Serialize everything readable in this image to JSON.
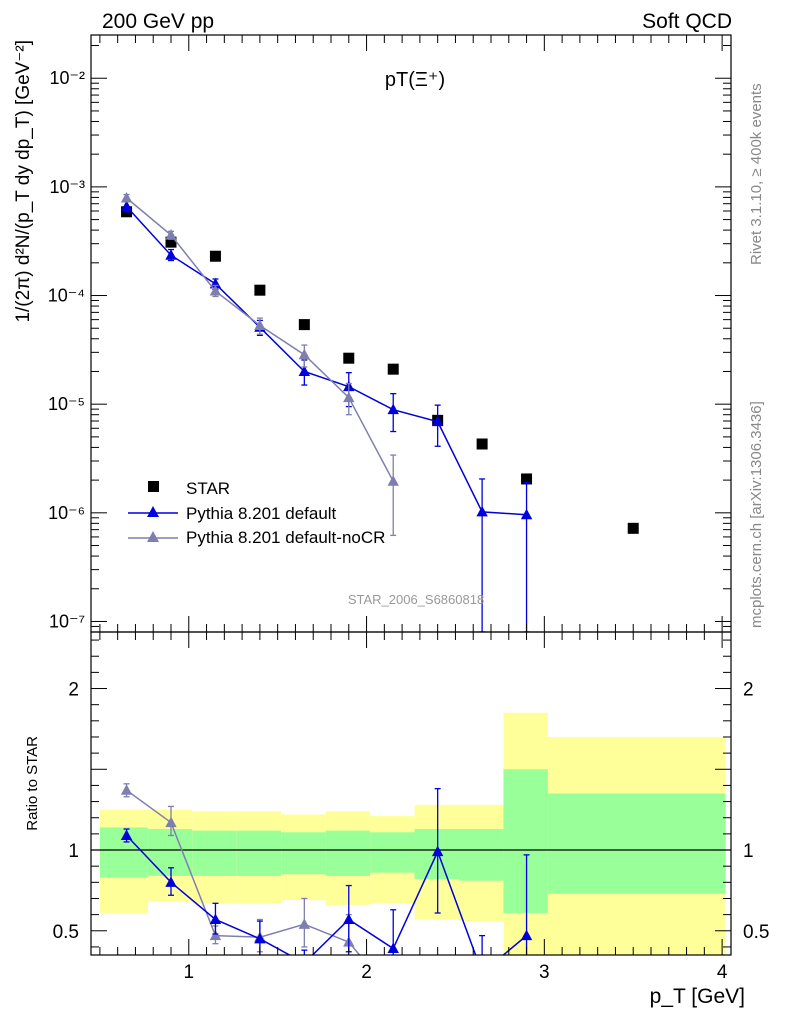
{
  "header": {
    "left": "200 GeV pp",
    "right": "Soft QCD"
  },
  "side_text": {
    "top": "Rivet 3.1.10, ≥ 400k events",
    "bottom": "mcplots.cern.ch [arXiv:1306.3436]"
  },
  "watermark": "STAR_2006_S6860818",
  "colors": {
    "star": "#000000",
    "pythia_default": "#0000dd",
    "pythia_nocr": "#7f7faf",
    "band_inner": "#99ff99",
    "band_outer": "#ffff99"
  },
  "chart_data": [
    {
      "type": "scatter",
      "title": "pT(Ξ⁺)",
      "ylabel": "1/(2π) d²N/(p_T dy dp_T) [GeV⁻²]",
      "yscale": "log",
      "ylim": [
        8e-08,
        0.025
      ],
      "xlim": [
        0.45,
        4.05
      ],
      "yticks": [
        {
          "v": 1e-07,
          "label": "10⁻⁷"
        },
        {
          "v": 1e-06,
          "label": "10⁻⁶"
        },
        {
          "v": 1e-05,
          "label": "10⁻⁵"
        },
        {
          "v": 0.0001,
          "label": "10⁻⁴"
        },
        {
          "v": 0.001,
          "label": "10⁻³"
        },
        {
          "v": 0.01,
          "label": "10⁻²"
        }
      ],
      "legend": [
        "STAR",
        "Pythia 8.201 default",
        "Pythia 8.201 default-noCR"
      ],
      "series": [
        {
          "name": "STAR",
          "marker": "square",
          "points": [
            [
              0.65,
              0.00059
            ],
            [
              0.9,
              0.00031
            ],
            [
              1.15,
              0.00023
            ],
            [
              1.4,
              0.000112
            ],
            [
              1.65,
              5.4e-05
            ],
            [
              1.9,
              2.65e-05
            ],
            [
              2.15,
              2.1e-05
            ],
            [
              2.4,
              7.1e-06
            ],
            [
              2.65,
              4.3e-06
            ],
            [
              2.9,
              2.05e-06
            ],
            [
              3.5,
              7.2e-07
            ]
          ]
        },
        {
          "name": "Pythia 8.201 default",
          "marker": "triangle",
          "points": [
            [
              0.65,
              0.00066,
              0.00073,
              0.00059
            ],
            [
              0.9,
              0.000235,
              0.000265,
              0.00021
            ],
            [
              1.15,
              0.000128,
              0.000142,
              0.000114
            ],
            [
              1.4,
              5.1e-05,
              5.9e-05,
              4.3e-05
            ],
            [
              1.65,
              2e-05,
              2.55e-05,
              1.5e-05
            ],
            [
              1.9,
              1.45e-05,
              1.95e-05,
              9.5e-06
            ],
            [
              2.15,
              8.9e-06,
              1.25e-05,
              5.6e-06
            ],
            [
              2.4,
              6.9e-06,
              9.8e-06,
              4.1e-06
            ],
            [
              2.65,
              1.02e-06,
              2.05e-06,
              8e-08
            ],
            [
              2.9,
              9.6e-07,
              1.9e-06,
              8e-08
            ]
          ]
        },
        {
          "name": "Pythia 8.201 default-noCR",
          "marker": "triangle",
          "points": [
            [
              0.65,
              0.00079,
              0.00085,
              0.00073
            ],
            [
              0.9,
              0.00036,
              0.00039,
              0.00033
            ],
            [
              1.15,
              0.00011,
              0.000124,
              9.8e-05
            ],
            [
              1.4,
              5.3e-05,
              6.2e-05,
              4.4e-05
            ],
            [
              1.65,
              2.85e-05,
              3.5e-05,
              2.2e-05
            ],
            [
              1.9,
              1.15e-05,
              1.55e-05,
              8e-06
            ],
            [
              2.15,
              1.95e-06,
              3.4e-06,
              6.2e-07
            ]
          ]
        }
      ]
    },
    {
      "type": "line",
      "ylabel": "Ratio to STAR",
      "xlabel": "p_T [GeV]",
      "ylim": [
        0.35,
        2.35
      ],
      "xlim": [
        0.45,
        4.05
      ],
      "xticks": [
        1,
        2,
        3,
        4
      ],
      "yticks": [
        0.5,
        1,
        2
      ],
      "bands": [
        {
          "x0": 0.5,
          "x1": 0.77,
          "in_lo": 0.83,
          "in_hi": 1.14,
          "out_lo": 0.61,
          "out_hi": 1.25
        },
        {
          "x0": 0.77,
          "x1": 1.02,
          "in_lo": 0.84,
          "in_hi": 1.13,
          "out_lo": 0.68,
          "out_hi": 1.25
        },
        {
          "x0": 1.02,
          "x1": 1.27,
          "in_lo": 0.84,
          "in_hi": 1.12,
          "out_lo": 0.67,
          "out_hi": 1.24
        },
        {
          "x0": 1.27,
          "x1": 1.52,
          "in_lo": 0.84,
          "in_hi": 1.12,
          "out_lo": 0.67,
          "out_hi": 1.24
        },
        {
          "x0": 1.52,
          "x1": 1.77,
          "in_lo": 0.85,
          "in_hi": 1.11,
          "out_lo": 0.69,
          "out_hi": 1.22
        },
        {
          "x0": 1.77,
          "x1": 2.02,
          "in_lo": 0.84,
          "in_hi": 1.12,
          "out_lo": 0.66,
          "out_hi": 1.24
        },
        {
          "x0": 2.02,
          "x1": 2.27,
          "in_lo": 0.86,
          "in_hi": 1.11,
          "out_lo": 0.67,
          "out_hi": 1.21
        },
        {
          "x0": 2.27,
          "x1": 2.52,
          "in_lo": 0.82,
          "in_hi": 1.13,
          "out_lo": 0.57,
          "out_hi": 1.28
        },
        {
          "x0": 2.52,
          "x1": 2.77,
          "in_lo": 0.81,
          "in_hi": 1.13,
          "out_lo": 0.56,
          "out_hi": 1.28
        },
        {
          "x0": 2.77,
          "x1": 3.02,
          "in_lo": 0.61,
          "in_hi": 1.5,
          "out_lo": 0.25,
          "out_hi": 1.85
        },
        {
          "x0": 3.02,
          "x1": 4.02,
          "in_lo": 0.73,
          "in_hi": 1.35,
          "out_lo": 0.25,
          "out_hi": 1.7
        }
      ],
      "series": [
        {
          "name": "Pythia 8.201 default",
          "points": [
            [
              0.65,
              1.09,
              1.13,
              1.05
            ],
            [
              0.9,
              0.8,
              0.89,
              0.72
            ],
            [
              1.15,
              0.57,
              0.67,
              0.48
            ],
            [
              1.4,
              0.45,
              0.56,
              0.34
            ],
            [
              1.65,
              0.3,
              0.38,
              0.25
            ],
            [
              1.9,
              0.57,
              0.78,
              0.37
            ],
            [
              2.15,
              0.39,
              0.63,
              0.15
            ],
            [
              2.4,
              0.99,
              1.38,
              0.61
            ],
            [
              2.65,
              0.24,
              0.47,
              0.02
            ],
            [
              2.9,
              0.47,
              0.97,
              0.0
            ]
          ]
        },
        {
          "name": "Pythia 8.201 default-noCR",
          "points": [
            [
              0.65,
              1.37,
              1.41,
              1.33
            ],
            [
              0.9,
              1.17,
              1.27,
              1.09
            ],
            [
              1.15,
              0.47,
              0.53,
              0.42
            ],
            [
              1.4,
              0.46,
              0.57,
              0.37
            ],
            [
              1.65,
              0.54,
              0.7,
              0.4
            ],
            [
              1.9,
              0.43,
              0.6,
              0.28
            ],
            [
              2.15,
              0.1,
              0.17,
              0.03
            ]
          ]
        }
      ]
    }
  ]
}
